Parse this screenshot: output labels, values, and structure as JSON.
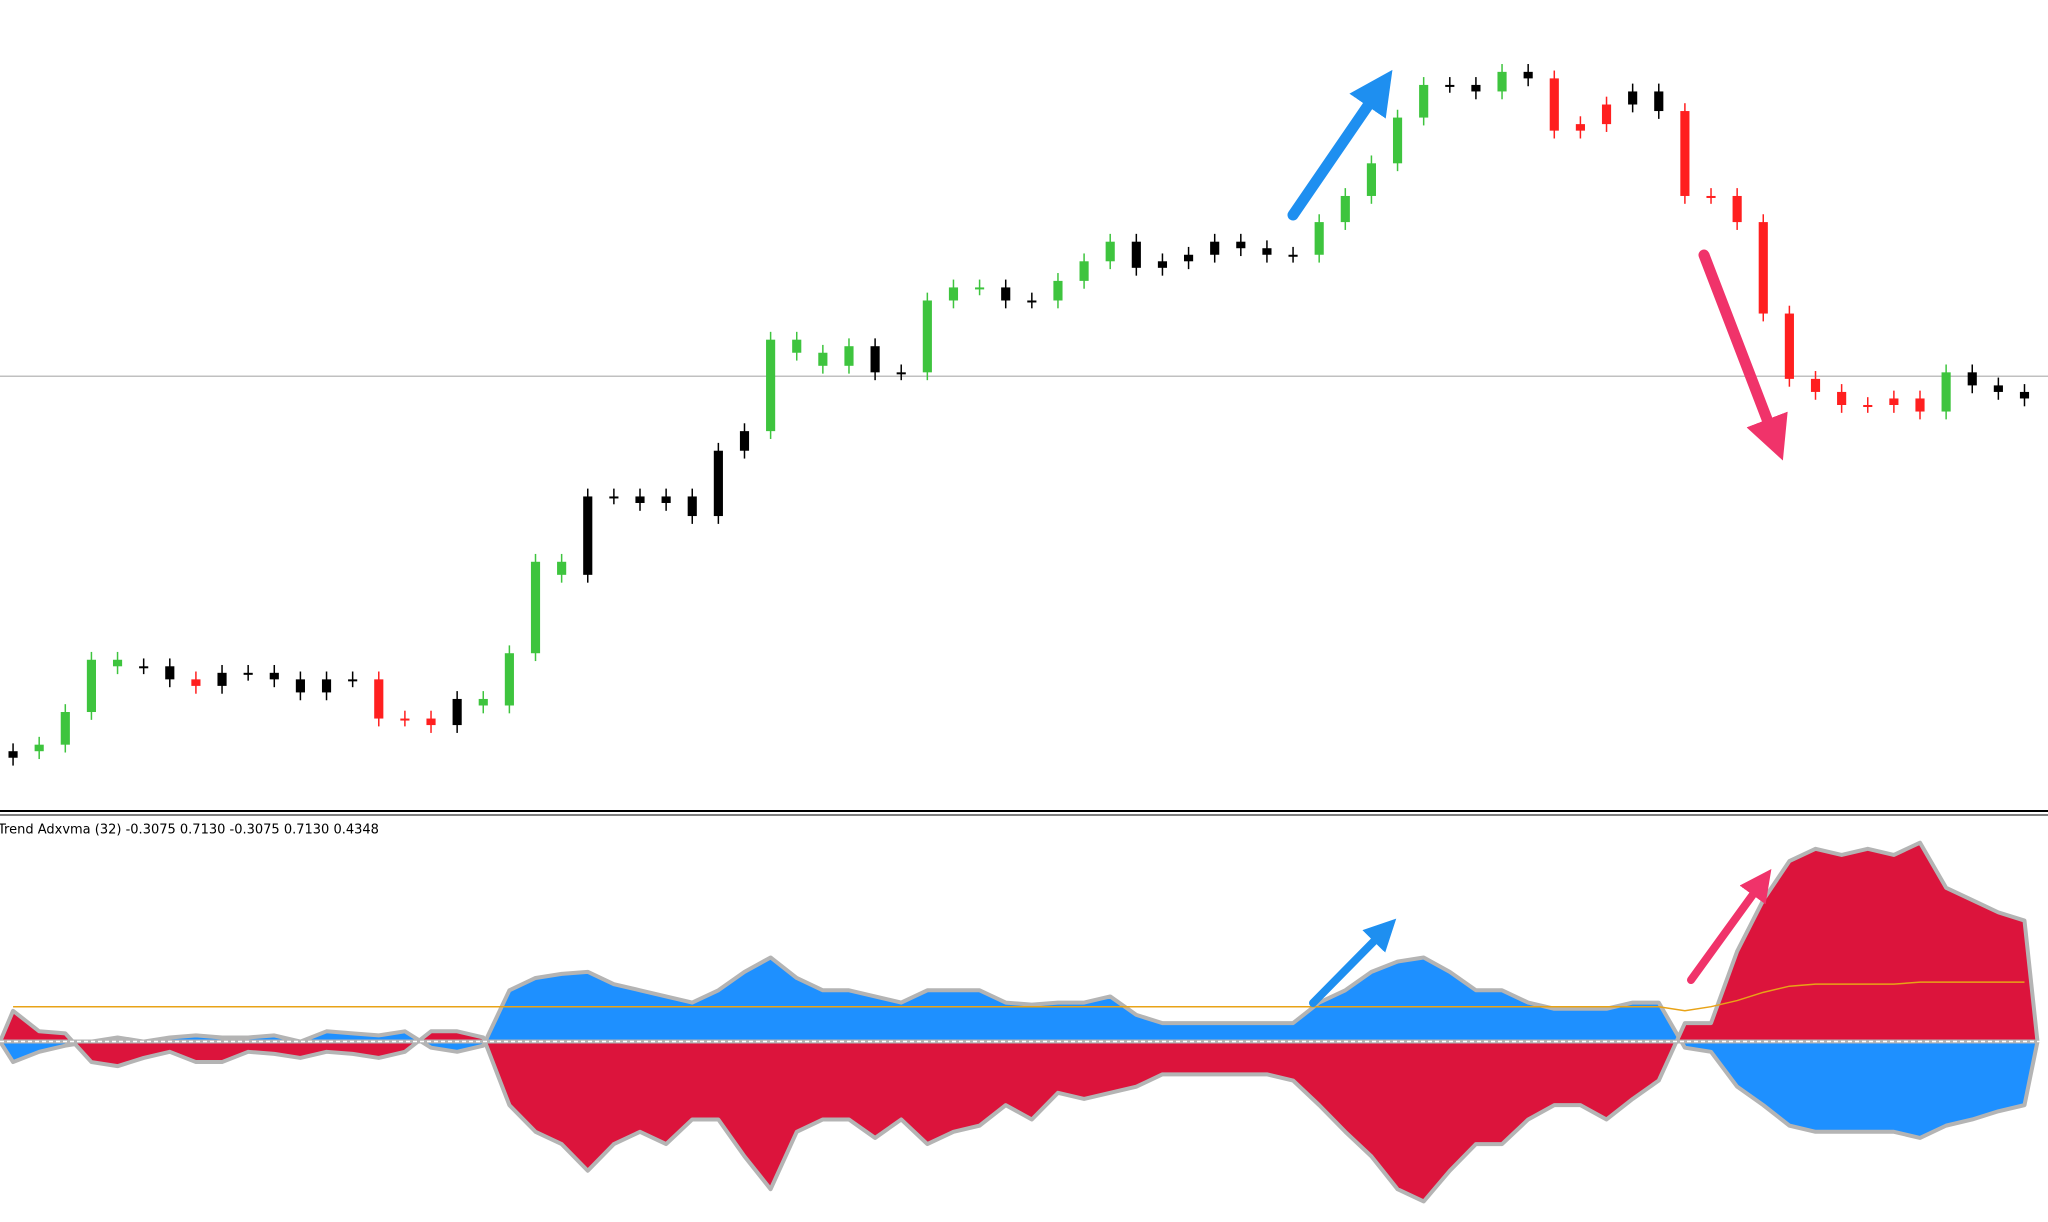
{
  "chart_data": [
    {
      "type": "candlestick",
      "open": [
        40,
        45,
        50,
        75,
        115,
        110,
        110,
        100,
        95,
        105,
        105,
        100,
        90,
        100,
        100,
        70,
        70,
        65,
        85,
        80,
        120,
        190,
        180,
        240,
        240,
        235,
        240,
        225,
        275,
        290,
        360,
        350,
        340,
        355,
        335,
        335,
        390,
        400,
        400,
        390,
        390,
        405,
        420,
        435,
        415,
        420,
        425,
        435,
        430,
        425,
        425,
        450,
        470,
        495,
        530,
        555,
        555,
        550,
        565,
        560,
        520,
        525,
        540,
        550,
        535,
        470,
        470,
        450,
        380,
        330,
        320,
        310,
        310,
        315,
        305,
        335,
        325,
        320
      ],
      "high": [
        51,
        56,
        81,
        121,
        121,
        116,
        116,
        106,
        111,
        111,
        111,
        106,
        106,
        106,
        106,
        76,
        76,
        91,
        91,
        126,
        196,
        196,
        246,
        246,
        246,
        246,
        246,
        281,
        296,
        366,
        366,
        356,
        361,
        361,
        341,
        396,
        406,
        406,
        406,
        396,
        411,
        426,
        441,
        441,
        426,
        431,
        441,
        441,
        436,
        431,
        456,
        476,
        501,
        536,
        561,
        561,
        561,
        571,
        571,
        566,
        531,
        546,
        556,
        556,
        541,
        476,
        476,
        456,
        386,
        336,
        326,
        316,
        321,
        321,
        341,
        341,
        331,
        326
      ],
      "low": [
        34,
        39,
        44,
        69,
        104,
        104,
        94,
        89,
        89,
        99,
        94,
        84,
        84,
        94,
        64,
        64,
        59,
        59,
        74,
        74,
        114,
        174,
        174,
        234,
        229,
        229,
        219,
        219,
        269,
        284,
        344,
        334,
        334,
        329,
        329,
        329,
        384,
        394,
        384,
        384,
        384,
        399,
        414,
        409,
        409,
        414,
        419,
        424,
        419,
        419,
        419,
        444,
        464,
        489,
        524,
        549,
        544,
        544,
        554,
        514,
        514,
        519,
        534,
        529,
        464,
        464,
        444,
        374,
        324,
        314,
        304,
        304,
        304,
        299,
        299,
        319,
        314,
        309
      ],
      "close": [
        45,
        50,
        75,
        115,
        110,
        110,
        100,
        95,
        105,
        105,
        100,
        90,
        100,
        100,
        70,
        70,
        65,
        85,
        80,
        120,
        190,
        180,
        240,
        240,
        235,
        240,
        225,
        275,
        290,
        360,
        350,
        340,
        355,
        335,
        335,
        390,
        400,
        400,
        390,
        390,
        405,
        420,
        435,
        415,
        420,
        425,
        435,
        430,
        425,
        425,
        450,
        470,
        495,
        530,
        555,
        555,
        550,
        565,
        560,
        520,
        525,
        540,
        550,
        535,
        470,
        470,
        450,
        380,
        330,
        320,
        310,
        310,
        315,
        305,
        335,
        325,
        320,
        315
      ],
      "colors": [
        "#000000",
        "#3ec43e",
        "#3ec43e",
        "#3ec43e",
        "#3ec43e",
        "#000000",
        "#000000",
        "#ff1f1f",
        "#000000",
        "#000000",
        "#000000",
        "#000000",
        "#000000",
        "#000000",
        "#ff1f1f",
        "#ff1f1f",
        "#ff1f1f",
        "#000000",
        "#3ec43e",
        "#3ec43e",
        "#3ec43e",
        "#3ec43e",
        "#000000",
        "#000000",
        "#000000",
        "#000000",
        "#000000",
        "#000000",
        "#000000",
        "#3ec43e",
        "#3ec43e",
        "#3ec43e",
        "#3ec43e",
        "#000000",
        "#000000",
        "#3ec43e",
        "#3ec43e",
        "#3ec43e",
        "#000000",
        "#000000",
        "#3ec43e",
        "#3ec43e",
        "#3ec43e",
        "#000000",
        "#000000",
        "#000000",
        "#000000",
        "#000000",
        "#000000",
        "#000000",
        "#3ec43e",
        "#3ec43e",
        "#3ec43e",
        "#3ec43e",
        "#3ec43e",
        "#000000",
        "#000000",
        "#3ec43e",
        "#000000",
        "#ff1f1f",
        "#ff1f1f",
        "#ff1f1f",
        "#000000",
        "#000000",
        "#ff1f1f",
        "#ff1f1f",
        "#ff1f1f",
        "#ff1f1f",
        "#ff1f1f",
        "#ff1f1f",
        "#ff1f1f",
        "#ff1f1f",
        "#ff1f1f",
        "#ff1f1f",
        "#3ec43e",
        "#000000",
        "#000000",
        "#000000"
      ],
      "ylim": [
        0,
        620
      ],
      "hline": 332,
      "hline_color": "#c0c0c0"
    },
    {
      "type": "area",
      "title": "Trend Adxvma (32) -0.3075 0.7130 -0.3075 0.7130 0.4348",
      "ylim": [
        -0.88,
        1.1
      ],
      "series": [
        {
          "color": "#1e90ff",
          "values": [
            -0.1,
            -0.05,
            -0.02,
            0.0,
            0.02,
            0.0,
            0.02,
            0.03,
            0.02,
            0.02,
            0.03,
            0.0,
            0.05,
            0.04,
            0.03,
            0.05,
            -0.03,
            -0.05,
            -0.02,
            0.25,
            0.31,
            0.33,
            0.34,
            0.28,
            0.25,
            0.22,
            0.19,
            0.25,
            0.34,
            0.41,
            0.31,
            0.25,
            0.25,
            0.22,
            0.19,
            0.25,
            0.25,
            0.25,
            0.19,
            0.18,
            0.19,
            0.19,
            0.22,
            0.13,
            0.09,
            0.09,
            0.09,
            0.09,
            0.09,
            0.09,
            0.19,
            0.25,
            0.34,
            0.39,
            0.41,
            0.34,
            0.25,
            0.25,
            0.19,
            0.16,
            0.16,
            0.16,
            0.19,
            0.19,
            -0.03,
            -0.05,
            -0.22,
            -0.31,
            -0.41,
            -0.44,
            -0.44,
            -0.44,
            -0.44,
            -0.47,
            -0.41,
            -0.38,
            -0.34,
            -0.31
          ]
        },
        {
          "color": "#dc143c",
          "values": [
            0.15,
            0.05,
            0.04,
            -0.1,
            -0.12,
            -0.08,
            -0.05,
            -0.1,
            -0.1,
            -0.05,
            -0.06,
            -0.08,
            -0.05,
            -0.06,
            -0.08,
            -0.05,
            0.05,
            0.05,
            0.02,
            -0.31,
            -0.44,
            -0.5,
            -0.63,
            -0.5,
            -0.44,
            -0.5,
            -0.38,
            -0.38,
            -0.56,
            -0.72,
            -0.44,
            -0.38,
            -0.38,
            -0.47,
            -0.38,
            -0.5,
            -0.44,
            -0.41,
            -0.31,
            -0.38,
            -0.25,
            -0.28,
            -0.25,
            -0.22,
            -0.16,
            -0.16,
            -0.16,
            -0.16,
            -0.16,
            -0.19,
            -0.31,
            -0.44,
            -0.56,
            -0.72,
            -0.78,
            -0.63,
            -0.5,
            -0.5,
            -0.38,
            -0.31,
            -0.31,
            -0.38,
            -0.28,
            -0.19,
            0.09,
            0.09,
            0.44,
            0.69,
            0.88,
            0.94,
            0.91,
            0.94,
            0.91,
            0.97,
            0.75,
            0.69,
            0.63,
            0.59
          ]
        },
        {
          "type": "line",
          "color": "#e8a317",
          "values": [
            0.17,
            0.17,
            0.17,
            0.17,
            0.17,
            0.17,
            0.17,
            0.17,
            0.17,
            0.17,
            0.17,
            0.17,
            0.17,
            0.17,
            0.17,
            0.17,
            0.17,
            0.17,
            0.17,
            0.17,
            0.17,
            0.17,
            0.17,
            0.17,
            0.17,
            0.17,
            0.17,
            0.17,
            0.17,
            0.17,
            0.17,
            0.17,
            0.17,
            0.17,
            0.17,
            0.17,
            0.17,
            0.17,
            0.17,
            0.17,
            0.17,
            0.17,
            0.17,
            0.17,
            0.17,
            0.17,
            0.17,
            0.17,
            0.17,
            0.17,
            0.17,
            0.17,
            0.17,
            0.17,
            0.17,
            0.17,
            0.17,
            0.17,
            0.17,
            0.17,
            0.17,
            0.17,
            0.17,
            0.17,
            0.15,
            0.17,
            0.2,
            0.24,
            0.27,
            0.28,
            0.28,
            0.28,
            0.28,
            0.29,
            0.29,
            0.29,
            0.29,
            0.29
          ]
        }
      ]
    }
  ]
}
